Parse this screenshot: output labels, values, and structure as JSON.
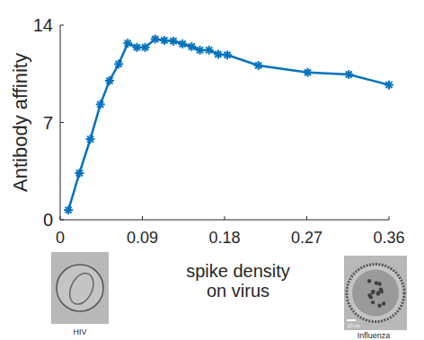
{
  "chart_data": {
    "type": "line",
    "y_label": "Antibody affinity",
    "x_label": "spike density\non virus",
    "x": [
      0.009,
      0.021,
      0.033,
      0.044,
      0.054,
      0.064,
      0.074,
      0.084,
      0.093,
      0.104,
      0.114,
      0.124,
      0.134,
      0.144,
      0.153,
      0.163,
      0.173,
      0.183,
      0.217,
      0.271,
      0.316,
      0.36
    ],
    "values": [
      0.7,
      3.35,
      5.8,
      8.3,
      10.0,
      11.2,
      12.7,
      12.4,
      12.4,
      13.0,
      12.9,
      12.85,
      12.65,
      12.45,
      12.2,
      12.2,
      11.9,
      11.85,
      11.1,
      10.6,
      10.45,
      9.7
    ],
    "color": "#0072bd",
    "marker": "asterisk",
    "xlim": [
      0,
      0.36
    ],
    "xticks": [
      0,
      0.09,
      0.18,
      0.27,
      0.36
    ],
    "ylim": [
      0,
      14
    ],
    "yticks": [
      0,
      7,
      14
    ],
    "grid": false,
    "annotations": [
      "HIV",
      "Influenza",
      "20 nm"
    ]
  }
}
